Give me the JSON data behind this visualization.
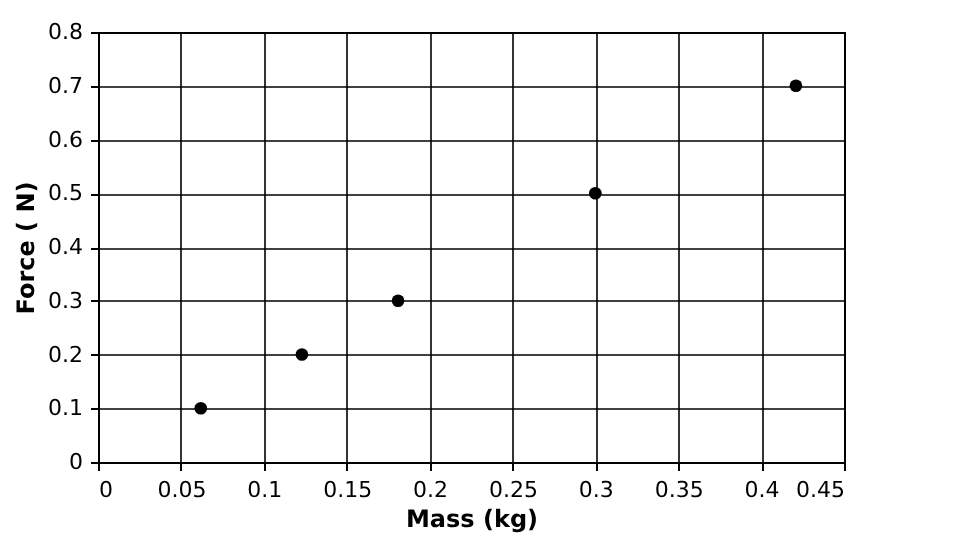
{
  "chart_data": {
    "type": "scatter",
    "xlabel": "Mass (kg)",
    "ylabel": "Force ( N)",
    "x": [
      0.062,
      0.123,
      0.181,
      0.3,
      0.421
    ],
    "series": [
      {
        "color": "#000000",
        "values": [
          0.1,
          0.2,
          0.3,
          0.5,
          0.7
        ]
      }
    ],
    "xlim": [
      0,
      0.45
    ],
    "xticks": [
      0,
      0.05,
      0.1,
      0.15,
      0.2,
      0.25,
      0.3,
      0.35,
      0.4,
      0.45
    ],
    "ylim": [
      0,
      0.8
    ],
    "yticks": [
      0,
      0.1,
      0.2,
      0.3,
      0.4,
      0.5,
      0.6,
      0.7,
      0.8
    ],
    "grid": true,
    "marker": "circle"
  }
}
